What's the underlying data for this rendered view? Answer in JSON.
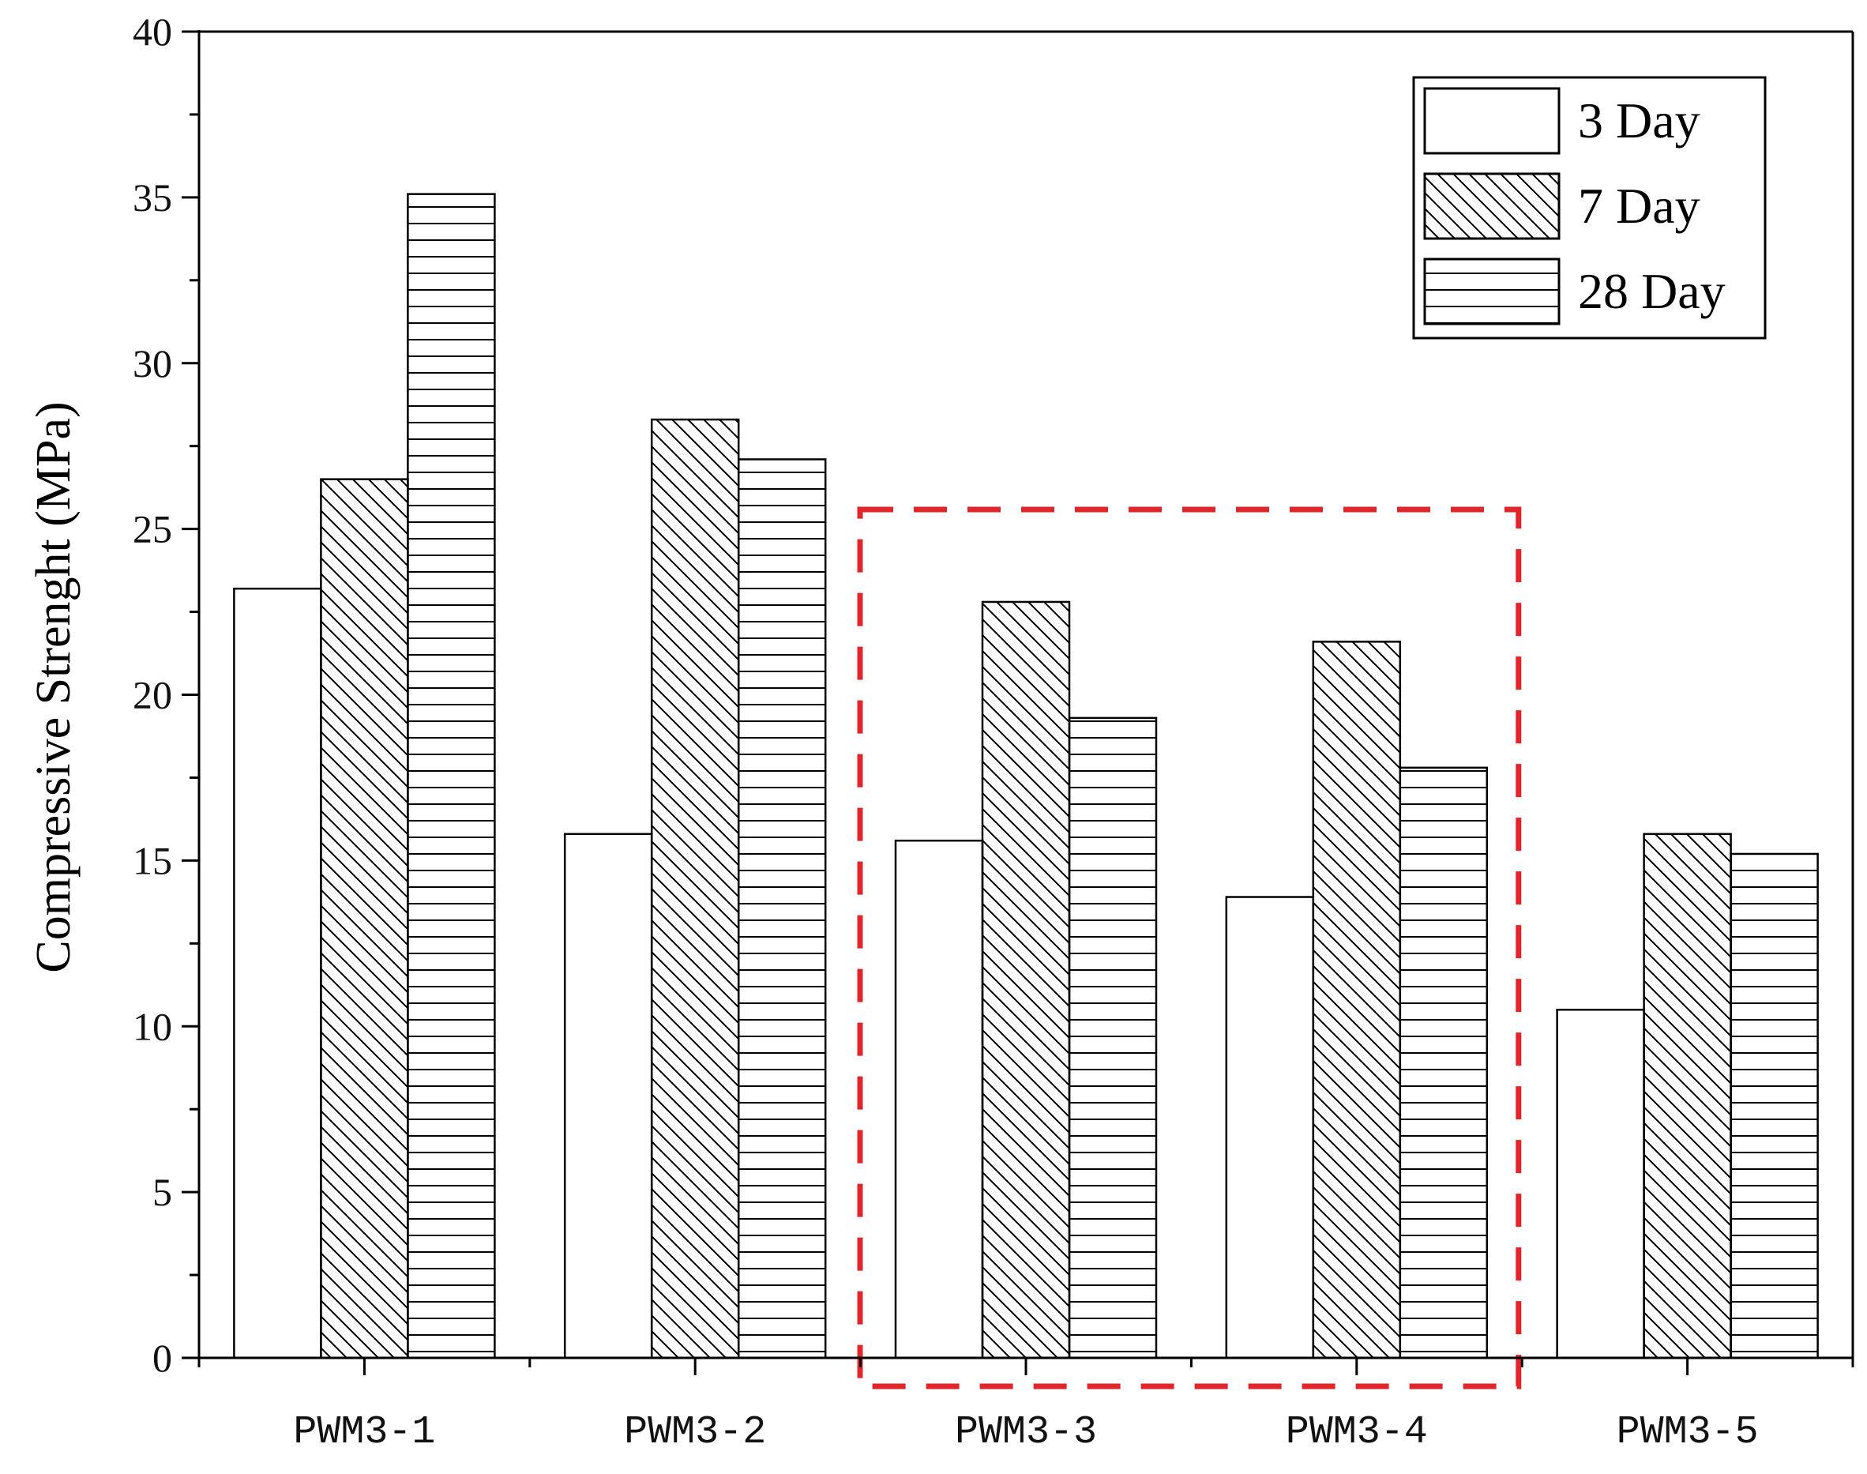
{
  "chart_data": {
    "type": "bar",
    "title": "",
    "xlabel": "",
    "ylabel": "Compressive Strenght (MPa)",
    "ylim": [
      0,
      40
    ],
    "yticks": [
      0,
      5,
      10,
      15,
      20,
      25,
      30,
      35,
      40
    ],
    "categories": [
      "PWM3-1",
      "PWM3-2",
      "PWM3-3",
      "PWM3-4",
      "PWM3-5"
    ],
    "series": [
      {
        "name": "3 Day",
        "pattern": "none",
        "values": [
          23.2,
          15.8,
          15.6,
          13.9,
          10.5
        ]
      },
      {
        "name": "7 Day",
        "pattern": "diagonal",
        "values": [
          26.5,
          28.3,
          22.8,
          21.6,
          15.8
        ]
      },
      {
        "name": "28 Day",
        "pattern": "horizontal",
        "values": [
          35.1,
          27.1,
          19.3,
          17.8,
          15.2
        ]
      }
    ],
    "legend_position": "top-right",
    "grid": false,
    "highlight": {
      "categories": [
        "PWM3-3",
        "PWM3-4"
      ],
      "color": "#e0262a",
      "style": "dashed"
    }
  }
}
